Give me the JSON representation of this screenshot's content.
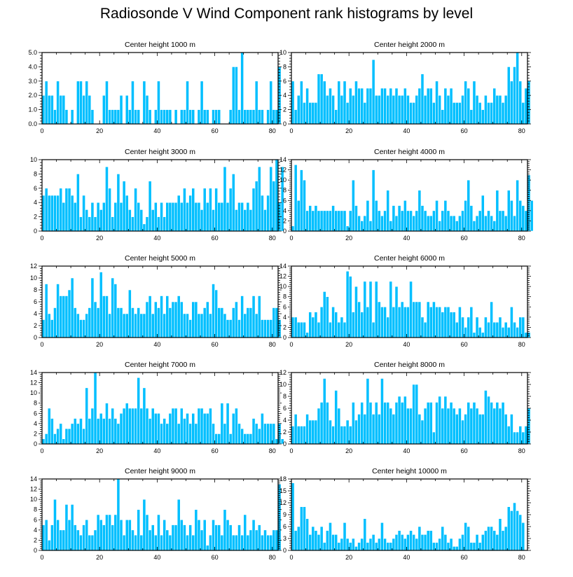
{
  "title": "Radiosonde V Wind Component rank histograms by level",
  "bar_color": "#00bfff",
  "bar_edge": "#ffffff",
  "chart_data": [
    {
      "type": "bar",
      "title": "Center height 1000 m",
      "ylim": [
        0,
        5
      ],
      "yticks": [
        0,
        1,
        2,
        3,
        4,
        5
      ],
      "ytick_labels": [
        "0.0",
        "1.0",
        "2.0",
        "3.0",
        "4.0",
        "5.0"
      ],
      "xlim": [
        0,
        82
      ],
      "xticks": [
        0,
        20,
        40,
        60,
        80
      ],
      "values": [
        2,
        3,
        2,
        2,
        1,
        3,
        2,
        2,
        1,
        0,
        1,
        0,
        3,
        3,
        2,
        3,
        2,
        1,
        0,
        0,
        0,
        2,
        3,
        1,
        1,
        1,
        1,
        2,
        0,
        2,
        1,
        3,
        1,
        1,
        0,
        3,
        2,
        1,
        0,
        1,
        3,
        1,
        1,
        1,
        1,
        0,
        1,
        0,
        1,
        1,
        3,
        1,
        1,
        0,
        1,
        3,
        1,
        1,
        0,
        1,
        1,
        1,
        0,
        0,
        0,
        1,
        4,
        4,
        1,
        5,
        1,
        1,
        1,
        1,
        3,
        1,
        1,
        0,
        1,
        3,
        1,
        1,
        4
      ]
    },
    {
      "type": "bar",
      "title": "Center height 2000 m",
      "ylim": [
        0,
        10
      ],
      "yticks": [
        0,
        2,
        4,
        6,
        8,
        10
      ],
      "ytick_labels": [
        "0",
        "2",
        "4",
        "6",
        "8",
        "10"
      ],
      "xlim": [
        0,
        82
      ],
      "xticks": [
        0,
        20,
        40,
        60,
        80
      ],
      "values": [
        6,
        2,
        4,
        6,
        3,
        5,
        3,
        3,
        3,
        7,
        7,
        6,
        4,
        5,
        4,
        2,
        6,
        4,
        6,
        3,
        5,
        4,
        6,
        5,
        5,
        3,
        5,
        5,
        9,
        4,
        4,
        5,
        5,
        4,
        5,
        4,
        5,
        4,
        4,
        5,
        4,
        3,
        3,
        4,
        5,
        7,
        4,
        5,
        5,
        3,
        6,
        4,
        2,
        5,
        4,
        5,
        3,
        3,
        3,
        4,
        6,
        5,
        2,
        6,
        4,
        3,
        2,
        4,
        3,
        3,
        5,
        4,
        4,
        3,
        4,
        8,
        6,
        8,
        10,
        6,
        3,
        5,
        6
      ]
    },
    {
      "type": "bar",
      "title": "Center height 3000 m",
      "ylim": [
        0,
        10
      ],
      "yticks": [
        0,
        2,
        4,
        6,
        8,
        10
      ],
      "ytick_labels": [
        "0",
        "2",
        "4",
        "6",
        "8",
        "10"
      ],
      "xlim": [
        0,
        82
      ],
      "xticks": [
        0,
        20,
        40,
        60,
        80
      ],
      "values": [
        5,
        6,
        5,
        5,
        5,
        5,
        6,
        4,
        6,
        6,
        5,
        4,
        8,
        2,
        5,
        3,
        2,
        4,
        2,
        4,
        3,
        4,
        9,
        6,
        2,
        4,
        8,
        4,
        7,
        5,
        3,
        2,
        6,
        4,
        3,
        1,
        2,
        7,
        3,
        4,
        2,
        4,
        2,
        4,
        4,
        4,
        4,
        5,
        4,
        6,
        4,
        5,
        6,
        4,
        4,
        3,
        6,
        4,
        6,
        3,
        6,
        4,
        4,
        9,
        4,
        6,
        8,
        3,
        4,
        4,
        3,
        4,
        3,
        6,
        7,
        9,
        5,
        3,
        5,
        9,
        7,
        10,
        4,
        9
      ]
    },
    {
      "type": "bar",
      "title": "Center height 4000 m",
      "ylim": [
        0,
        14
      ],
      "yticks": [
        0,
        2,
        4,
        6,
        8,
        10,
        12,
        14
      ],
      "ytick_labels": [
        "0",
        "2",
        "4",
        "6",
        "8",
        "10",
        "12",
        "14"
      ],
      "xlim": [
        0,
        82
      ],
      "xticks": [
        0,
        20,
        40,
        60,
        80
      ],
      "values": [
        1,
        13,
        6,
        12,
        10,
        4,
        5,
        4,
        5,
        4,
        4,
        4,
        4,
        4,
        5,
        4,
        4,
        4,
        4,
        1,
        4,
        10,
        5,
        3,
        2,
        3,
        6,
        2,
        12,
        6,
        4,
        3,
        4,
        8,
        2,
        5,
        3,
        5,
        4,
        6,
        4,
        4,
        3,
        4,
        8,
        5,
        4,
        3,
        3,
        4,
        6,
        2,
        4,
        6,
        4,
        3,
        3,
        2,
        3,
        4,
        6,
        10,
        5,
        2,
        3,
        4,
        7,
        3,
        4,
        3,
        2,
        8,
        4,
        4,
        3,
        8,
        6,
        3,
        10,
        6,
        5,
        4,
        11,
        6
      ]
    },
    {
      "type": "bar",
      "title": "Center height 5000 m",
      "ylim": [
        0,
        12
      ],
      "yticks": [
        0,
        2,
        4,
        6,
        8,
        10,
        12
      ],
      "ytick_labels": [
        "0",
        "2",
        "4",
        "6",
        "8",
        "10",
        "12"
      ],
      "xlim": [
        0,
        82
      ],
      "xticks": [
        0,
        20,
        40,
        60,
        80
      ],
      "values": [
        3,
        9,
        4,
        3,
        5,
        9,
        7,
        7,
        7,
        8,
        10,
        5,
        4,
        3,
        3,
        4,
        5,
        10,
        6,
        5,
        11,
        7,
        7,
        4,
        10,
        9,
        5,
        5,
        4,
        4,
        8,
        5,
        4,
        5,
        4,
        4,
        6,
        7,
        4,
        6,
        5,
        7,
        4,
        7,
        5,
        6,
        6,
        7,
        6,
        4,
        4,
        3,
        6,
        6,
        4,
        4,
        5,
        6,
        4,
        9,
        8,
        5,
        5,
        4,
        3,
        3,
        5,
        6,
        3,
        7,
        4,
        5,
        5,
        7,
        4,
        7,
        3,
        3,
        3,
        3,
        5,
        5,
        3
      ]
    },
    {
      "type": "bar",
      "title": "Center height 6000 m",
      "ylim": [
        0,
        14
      ],
      "yticks": [
        0,
        2,
        4,
        6,
        8,
        10,
        12,
        14
      ],
      "ytick_labels": [
        "0",
        "2",
        "4",
        "6",
        "8",
        "10",
        "12",
        "14"
      ],
      "xlim": [
        0,
        82
      ],
      "xticks": [
        0,
        20,
        40,
        60,
        80
      ],
      "values": [
        4,
        4,
        3,
        3,
        3,
        1,
        5,
        4,
        5,
        3,
        6,
        9,
        8,
        3,
        6,
        5,
        3,
        4,
        3,
        13,
        12,
        5,
        10,
        7,
        5,
        11,
        6,
        11,
        3,
        11,
        7,
        6,
        6,
        4,
        11,
        6,
        10,
        6,
        7,
        6,
        6,
        11,
        7,
        7,
        7,
        4,
        3,
        7,
        6,
        7,
        6,
        6,
        5,
        6,
        6,
        5,
        5,
        3,
        6,
        4,
        2,
        4,
        6,
        1,
        4,
        2,
        1,
        4,
        3,
        7,
        3,
        3,
        4,
        2,
        3,
        2,
        6,
        3,
        2,
        4,
        4,
        1,
        1
      ]
    },
    {
      "type": "bar",
      "title": "Center height 7000 m",
      "ylim": [
        0,
        14
      ],
      "yticks": [
        0,
        2,
        4,
        6,
        8,
        10,
        12,
        14
      ],
      "ytick_labels": [
        "0",
        "2",
        "4",
        "6",
        "8",
        "10",
        "12",
        "14"
      ],
      "xlim": [
        0,
        82
      ],
      "xticks": [
        0,
        20,
        40,
        60,
        80
      ],
      "values": [
        1,
        2,
        7,
        5,
        2,
        3,
        4,
        1,
        3,
        3,
        4,
        5,
        4,
        5,
        3,
        11,
        5,
        7,
        14,
        5,
        6,
        5,
        8,
        5,
        7,
        5,
        4,
        6,
        7,
        8,
        7,
        7,
        7,
        13,
        7,
        11,
        7,
        5,
        7,
        6,
        6,
        4,
        5,
        4,
        6,
        7,
        7,
        4,
        7,
        5,
        6,
        4,
        6,
        4,
        7,
        7,
        6,
        6,
        7,
        4,
        2,
        2,
        8,
        4,
        8,
        2,
        6,
        7,
        4,
        3,
        2,
        2,
        2,
        5,
        4,
        3,
        6,
        4,
        4,
        4,
        4,
        1,
        4,
        1
      ]
    },
    {
      "type": "bar",
      "title": "Center height 8000 m",
      "ylim": [
        0,
        12
      ],
      "yticks": [
        0,
        2,
        4,
        6,
        8,
        10,
        12
      ],
      "ytick_labels": [
        "0",
        "2",
        "4",
        "6",
        "8",
        "10",
        "12"
      ],
      "xlim": [
        0,
        82
      ],
      "xticks": [
        0,
        20,
        40,
        60,
        80
      ],
      "values": [
        3,
        5,
        3,
        3,
        3,
        5,
        4,
        4,
        4,
        6,
        7,
        11,
        7,
        4,
        3,
        9,
        6,
        3,
        3,
        4,
        3,
        7,
        4,
        5,
        7,
        5,
        11,
        7,
        5,
        7,
        5,
        11,
        7,
        7,
        6,
        5,
        7,
        8,
        7,
        8,
        6,
        6,
        10,
        10,
        5,
        4,
        6,
        7,
        7,
        2,
        7,
        8,
        6,
        8,
        6,
        7,
        6,
        5,
        6,
        4,
        5,
        7,
        6,
        7,
        6,
        5,
        5,
        9,
        8,
        7,
        6,
        7,
        6,
        7,
        5,
        3,
        5,
        2,
        2,
        3,
        2,
        3,
        6
      ]
    },
    {
      "type": "bar",
      "title": "Center height 9000 m",
      "ylim": [
        0,
        14
      ],
      "yticks": [
        0,
        2,
        4,
        6,
        8,
        10,
        12,
        14
      ],
      "ytick_labels": [
        "0",
        "2",
        "4",
        "6",
        "8",
        "10",
        "12",
        "14"
      ],
      "xlim": [
        0,
        82
      ],
      "xticks": [
        0,
        20,
        40,
        60,
        80
      ],
      "values": [
        5,
        6,
        2,
        5,
        10,
        6,
        4,
        4,
        9,
        6,
        9,
        5,
        4,
        3,
        5,
        6,
        3,
        3,
        4,
        7,
        6,
        5,
        7,
        7,
        5,
        7,
        14,
        6,
        3,
        6,
        6,
        4,
        3,
        8,
        3,
        10,
        7,
        4,
        5,
        3,
        7,
        3,
        6,
        4,
        3,
        5,
        5,
        10,
        6,
        5,
        3,
        5,
        3,
        8,
        6,
        4,
        6,
        1,
        3,
        6,
        5,
        5,
        3,
        8,
        6,
        5,
        3,
        3,
        5,
        3,
        7,
        3,
        4,
        6,
        4,
        5,
        3,
        4,
        3,
        3,
        4,
        4,
        13
      ]
    },
    {
      "type": "bar",
      "title": "Center height 10000 m",
      "ylim": [
        0,
        18
      ],
      "yticks": [
        0,
        3,
        6,
        9,
        12,
        15,
        18
      ],
      "ytick_labels": [
        "0",
        "3",
        "6",
        "9",
        "12",
        "15",
        "18"
      ],
      "xlim": [
        0,
        82
      ],
      "xticks": [
        0,
        20,
        40,
        60,
        80
      ],
      "values": [
        17,
        5,
        6,
        11,
        11,
        8,
        4,
        6,
        5,
        4,
        6,
        2,
        5,
        7,
        4,
        4,
        2,
        3,
        7,
        3,
        2,
        3,
        1,
        2,
        3,
        8,
        2,
        3,
        4,
        2,
        3,
        7,
        3,
        2,
        2,
        3,
        4,
        5,
        4,
        3,
        4,
        5,
        4,
        3,
        6,
        4,
        4,
        5,
        5,
        2,
        2,
        3,
        6,
        4,
        2,
        3,
        1,
        1,
        3,
        4,
        7,
        6,
        2,
        2,
        4,
        2,
        4,
        5,
        6,
        6,
        5,
        4,
        8,
        5,
        6,
        11,
        10,
        12,
        10,
        9,
        7
      ]
    }
  ]
}
